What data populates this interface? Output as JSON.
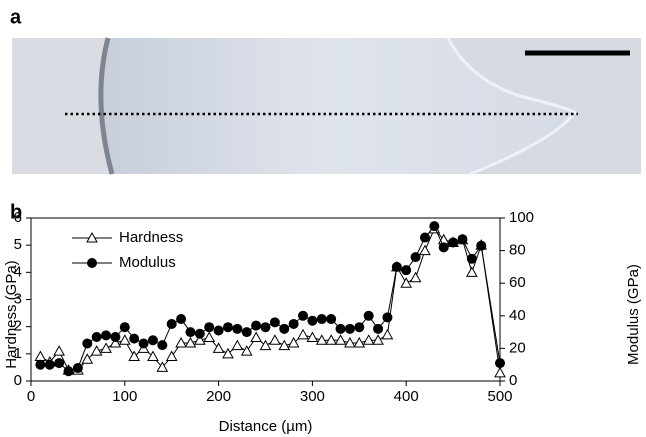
{
  "panel_labels": [
    "a",
    "b"
  ],
  "chart_data": {
    "type": "line",
    "xlabel": "Distance (µm)",
    "ylabel": "Hardness (GPa)",
    "y2label": "Modulus (GPa)",
    "x": [
      10,
      20,
      30,
      40,
      50,
      60,
      70,
      80,
      90,
      100,
      110,
      120,
      130,
      140,
      150,
      160,
      170,
      180,
      190,
      200,
      210,
      220,
      230,
      240,
      250,
      260,
      270,
      280,
      290,
      300,
      310,
      320,
      330,
      340,
      350,
      360,
      370,
      380,
      390,
      400,
      410,
      420,
      430,
      440,
      450,
      460,
      470,
      480,
      500
    ],
    "series": [
      {
        "name": "Hardness",
        "color": "#000000",
        "marker": "triangle",
        "values": [
          0.9,
          0.7,
          1.1,
          0.4,
          0.4,
          0.8,
          1.1,
          1.2,
          1.4,
          1.5,
          0.9,
          1.2,
          0.9,
          0.5,
          0.9,
          1.4,
          1.4,
          1.5,
          1.6,
          1.2,
          1.0,
          1.3,
          1.1,
          1.6,
          1.3,
          1.5,
          1.3,
          1.4,
          1.7,
          1.6,
          1.5,
          1.5,
          1.5,
          1.4,
          1.4,
          1.5,
          1.5,
          1.7,
          4.2,
          3.6,
          3.8,
          4.8,
          5.6,
          5.2,
          5.1,
          5.2,
          4.0,
          5.0,
          0.3
        ]
      },
      {
        "name": "Modulus",
        "color": "#000000",
        "marker": "circle",
        "axis": "y2",
        "values": [
          10,
          10,
          11,
          6,
          8,
          23,
          27,
          28,
          27,
          33,
          26,
          23,
          25,
          22,
          35,
          38,
          30,
          29,
          33,
          31,
          33,
          32,
          30,
          34,
          33,
          36,
          32,
          35,
          40,
          37,
          38,
          38,
          32,
          32,
          33,
          40,
          32,
          39,
          70,
          68,
          76,
          88,
          95,
          82,
          85,
          87,
          75,
          83,
          11
        ]
      }
    ],
    "xlim": [
      0,
      500
    ],
    "xticks": [
      0,
      100,
      200,
      300,
      400,
      500
    ],
    "ylim": [
      0,
      6
    ],
    "yticks": [
      0,
      1,
      2,
      3,
      4,
      5,
      6
    ],
    "y2lim": [
      0,
      100
    ],
    "y2ticks": [
      0,
      20,
      40,
      60,
      80,
      100
    ],
    "legend": "upper left"
  }
}
